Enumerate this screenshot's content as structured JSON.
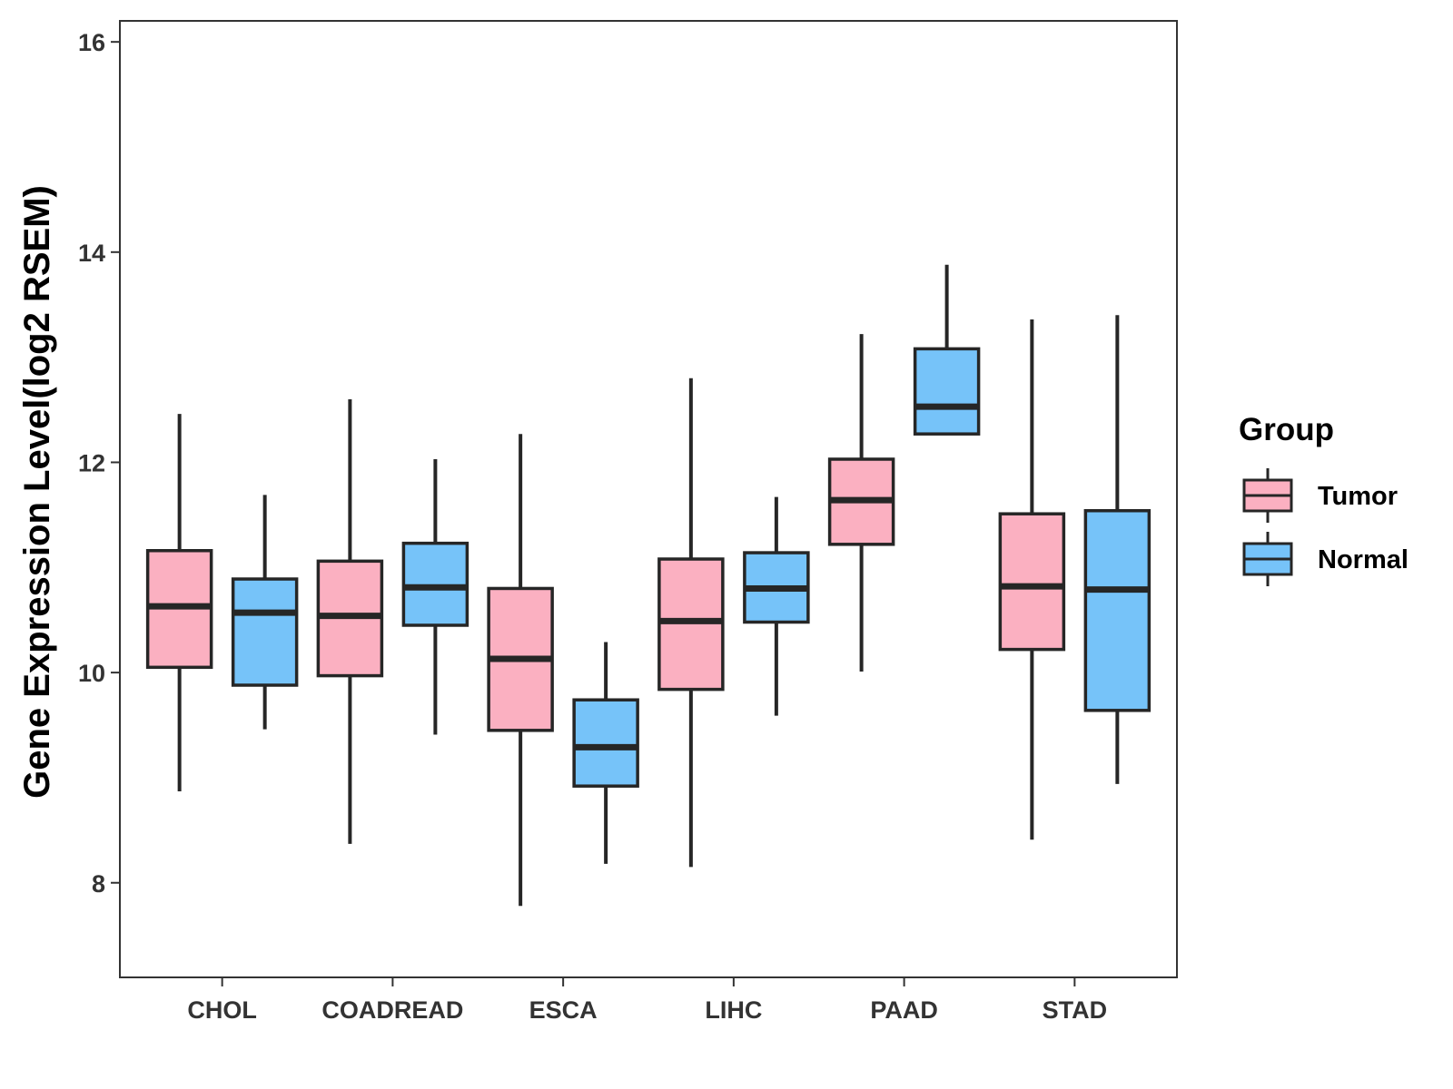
{
  "chart_data": {
    "type": "boxplot",
    "title": "",
    "xlabel": "",
    "ylabel": "Gene Expression Level(log2 RSEM)",
    "ylim": [
      7.1,
      16.2
    ],
    "yticks": [
      8,
      10,
      12,
      14,
      16
    ],
    "ytick_labels": [
      "8",
      "10",
      "12",
      "14",
      "16"
    ],
    "grid": false,
    "legend": {
      "title": "Group",
      "position": "right",
      "entries": [
        {
          "name": "Tumor",
          "color": "#FBB0C1"
        },
        {
          "name": "Normal",
          "color": "#76C3F9"
        }
      ]
    },
    "categories": [
      "CHOL",
      "COADREAD",
      "ESCA",
      "LIHC",
      "PAAD",
      "STAD"
    ],
    "series": [
      {
        "name": "Tumor",
        "color": "#FBB0C1",
        "boxes": [
          {
            "min": 8.87,
            "q1": 10.05,
            "median": 10.63,
            "q3": 11.16,
            "max": 12.46
          },
          {
            "min": 8.37,
            "q1": 9.97,
            "median": 10.54,
            "q3": 11.06,
            "max": 12.6
          },
          {
            "min": 7.78,
            "q1": 9.45,
            "median": 10.13,
            "q3": 10.8,
            "max": 12.27
          },
          {
            "min": 8.15,
            "q1": 9.84,
            "median": 10.49,
            "q3": 11.08,
            "max": 12.8
          },
          {
            "min": 10.01,
            "q1": 11.22,
            "median": 11.64,
            "q3": 12.03,
            "max": 13.22
          },
          {
            "min": 8.41,
            "q1": 10.22,
            "median": 10.82,
            "q3": 11.51,
            "max": 13.36
          }
        ]
      },
      {
        "name": "Normal",
        "color": "#76C3F9",
        "boxes": [
          {
            "min": 9.46,
            "q1": 9.88,
            "median": 10.57,
            "q3": 10.89,
            "max": 11.69
          },
          {
            "min": 9.41,
            "q1": 10.45,
            "median": 10.81,
            "q3": 11.23,
            "max": 12.03
          },
          {
            "min": 8.18,
            "q1": 8.92,
            "median": 9.29,
            "q3": 9.74,
            "max": 10.29
          },
          {
            "min": 9.59,
            "q1": 10.48,
            "median": 10.8,
            "q3": 11.14,
            "max": 11.67
          },
          {
            "min": 12.27,
            "q1": 12.27,
            "median": 12.53,
            "q3": 13.08,
            "max": 13.88
          },
          {
            "min": 8.94,
            "q1": 9.64,
            "median": 10.79,
            "q3": 11.54,
            "max": 13.4
          }
        ]
      }
    ]
  }
}
